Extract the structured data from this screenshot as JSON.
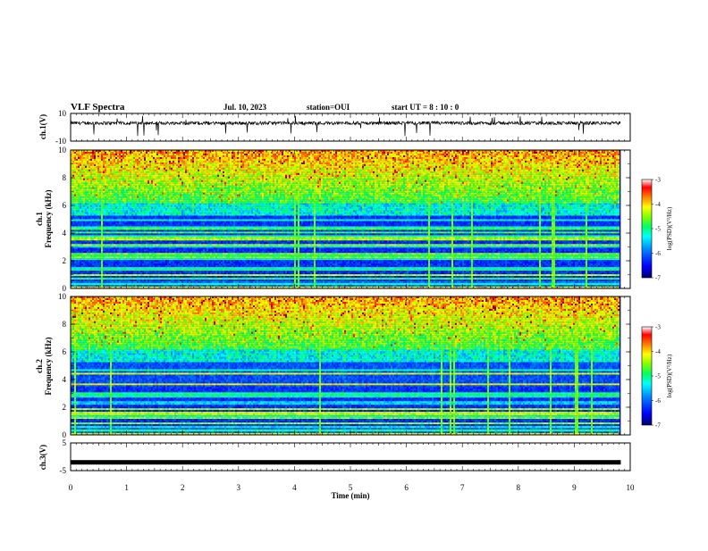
{
  "header": {
    "title": "VLF Spectra",
    "date": "Jul. 10, 2023",
    "station": "station=OUI",
    "start": "start UT = 8 : 10 : 0"
  },
  "chart_data": {
    "type": "heatmap",
    "x": {
      "label": "Time (min)",
      "range": [
        0,
        10
      ],
      "ticks": [
        "0",
        "1",
        "2",
        "3",
        "4",
        "5",
        "6",
        "7",
        "8",
        "9",
        "10"
      ],
      "data_end": 9.83
    },
    "panels": [
      {
        "id": "ch1-waveform",
        "type": "line",
        "ylabel": "ch.1(V)",
        "ylim": [
          -10,
          10
        ],
        "yticks": [
          "10",
          "-10"
        ],
        "note": "noisy waveform centered near 3 V with sporadic negative spikes"
      },
      {
        "id": "ch1-spectrogram",
        "type": "heatmap",
        "ylabel_line1": "ch.1",
        "ylabel_line2": "Frequency (kHz)",
        "ylim": [
          0,
          10
        ],
        "yticks": [
          "0",
          "2",
          "4",
          "6",
          "8",
          "10"
        ],
        "colorbar": {
          "label": "log(PSD)(V²/Hz)",
          "range": [
            -7,
            -3
          ],
          "ticks": [
            "-3",
            "-4",
            "-5",
            "-6",
            "-7"
          ]
        }
      },
      {
        "id": "ch2-spectrogram",
        "type": "heatmap",
        "ylabel_line1": "ch.2",
        "ylabel_line2": "Frequency (kHz)",
        "ylim": [
          0,
          10
        ],
        "yticks": [
          "0",
          "2",
          "4",
          "6",
          "8",
          "10"
        ],
        "colorbar": {
          "label": "log(PSD)(V²/Hz)",
          "range": [
            -7,
            -3
          ],
          "ticks": [
            "-3",
            "-4",
            "-5",
            "-6",
            "-7"
          ]
        }
      },
      {
        "id": "ch3-waveform",
        "type": "line",
        "ylabel": "ch.3(V)",
        "ylim": [
          -5,
          5
        ],
        "yticks": [
          "5",
          "-5"
        ],
        "note": "flat thick line near -2 V"
      }
    ]
  },
  "colors": {
    "background": "#ffffff",
    "axes": "#000000",
    "colormap": [
      "#000080",
      "#0000ff",
      "#00a0ff",
      "#00ffff",
      "#00ff80",
      "#80ff00",
      "#ffff00",
      "#ff8000",
      "#ff0000",
      "#800000"
    ]
  }
}
